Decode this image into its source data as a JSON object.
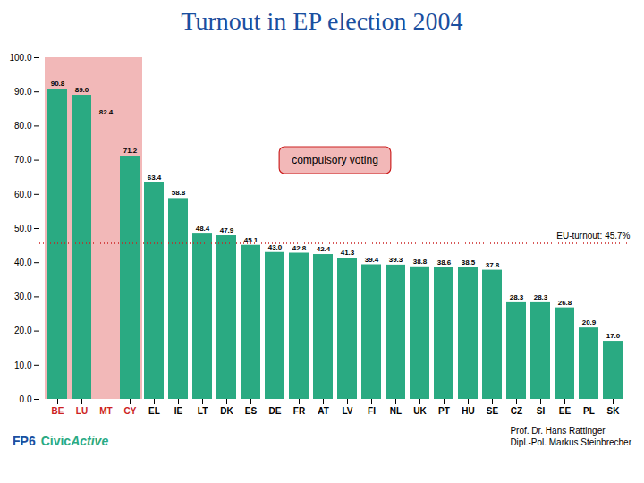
{
  "chart_data": {
    "type": "bar",
    "title": "Turnout in EP election 2004",
    "title_color": "#1a4fa0",
    "categories": [
      "BE",
      "LU",
      "MT",
      "CY",
      "EL",
      "IE",
      "LT",
      "DK",
      "ES",
      "DE",
      "FR",
      "AT",
      "LV",
      "FI",
      "NL",
      "UK",
      "PT",
      "HU",
      "SE",
      "CZ",
      "SI",
      "EE",
      "PL",
      "SK"
    ],
    "values": [
      90.8,
      89.0,
      82.4,
      71.2,
      63.4,
      58.8,
      48.4,
      47.9,
      45.1,
      43.0,
      42.8,
      42.4,
      41.3,
      39.4,
      39.3,
      38.8,
      38.6,
      38.5,
      37.8,
      28.3,
      28.3,
      26.8,
      20.9,
      17.0
    ],
    "value_labels": [
      "90.8",
      "89.0",
      "82.4",
      "71.2",
      "63.4",
      "58.8",
      "48.4",
      "47.9",
      "45.1",
      "43.0",
      "42.8",
      "42.4",
      "41.3",
      "39.4",
      "39.3",
      "38.8",
      "38.6",
      "38.5",
      "37.8",
      "28.3",
      "28.3",
      "26.8",
      "20.9",
      "17.0"
    ],
    "colors": [
      "#2aaa82",
      "#2aaa82",
      "#f2b8b8",
      "#2aaa82",
      "#2aaa82",
      "#2aaa82",
      "#2aaa82",
      "#2aaa82",
      "#2aaa82",
      "#2aaa82",
      "#2aaa82",
      "#2aaa82",
      "#2aaa82",
      "#2aaa82",
      "#2aaa82",
      "#2aaa82",
      "#2aaa82",
      "#2aaa82",
      "#2aaa82",
      "#2aaa82",
      "#2aaa82",
      "#2aaa82",
      "#2aaa82",
      "#2aaa82"
    ],
    "data_labels": true,
    "grid": false,
    "ylim": [
      0,
      100
    ],
    "yticks": [
      {
        "value": 0,
        "label": "0.0"
      },
      {
        "value": 10,
        "label": "10.0"
      },
      {
        "value": 20,
        "label": "20.0"
      },
      {
        "value": 30,
        "label": "30.0"
      },
      {
        "value": 40,
        "label": "40.0"
      },
      {
        "value": 50,
        "label": "50.0"
      },
      {
        "value": 60,
        "label": "60.0"
      },
      {
        "value": 70,
        "label": "70.0"
      },
      {
        "value": 80,
        "label": "80.0"
      },
      {
        "value": 90,
        "label": "90.0"
      },
      {
        "value": 100,
        "label": "100.0"
      }
    ],
    "compulsory_voting": {
      "categories": [
        "BE",
        "LU",
        "MT",
        "CY"
      ],
      "text": "compulsory voting",
      "color": "#f2b8b8",
      "label_color": "#cc2222"
    },
    "reference_line": {
      "value": 45.7,
      "label": "EU-turnout: 45.7%",
      "color": "#cc2222"
    },
    "footer_left": [
      {
        "text": "FP6",
        "color": "#1a4fa0"
      },
      {
        "text": "Civic",
        "color": "#2aaa82"
      },
      {
        "text": "Active",
        "color": "#2aaa82"
      }
    ],
    "footer_right": [
      "Prof. Dr. Hans Rattinger",
      "Dipl.-Pol. Markus Steinbrecher"
    ]
  }
}
